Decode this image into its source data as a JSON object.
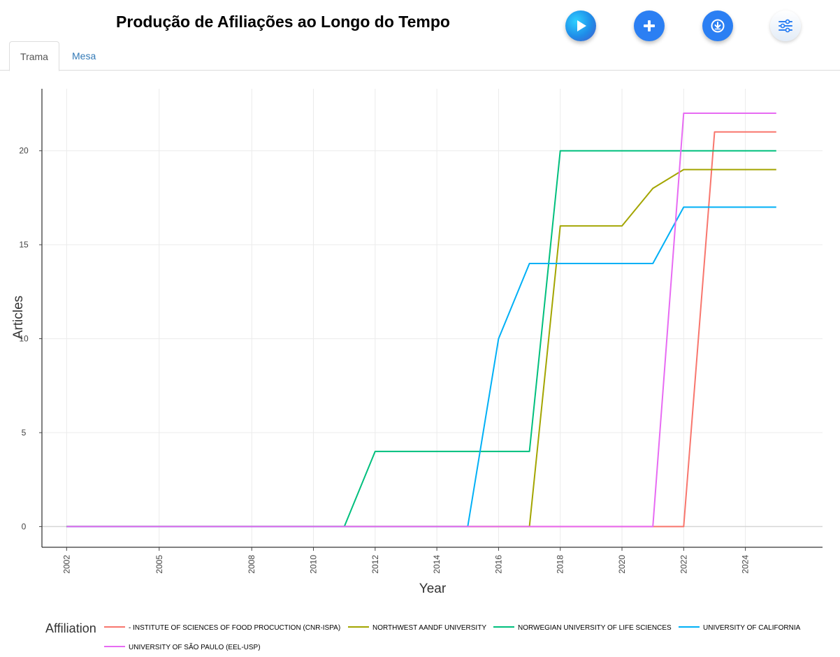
{
  "header": {
    "title": "Produção de Afiliações ao Longo do Tempo"
  },
  "toolbar": {
    "icons": [
      "play-icon",
      "plus-icon",
      "download-icon",
      "sliders-icon"
    ]
  },
  "tabs": [
    {
      "label": "Trama",
      "active": true
    },
    {
      "label": "Mesa",
      "active": false
    }
  ],
  "chart_data": {
    "type": "line",
    "xlabel": "Year",
    "ylabel": "Articles",
    "xlim": [
      2001.2,
      2026.5
    ],
    "ylim": [
      -1.1,
      23.3
    ],
    "x_ticks": [
      2002,
      2005,
      2008,
      2010,
      2012,
      2014,
      2016,
      2018,
      2020,
      2022,
      2024
    ],
    "y_ticks": [
      0,
      5,
      10,
      15,
      20
    ],
    "grid": true,
    "legend_title": "Affiliation",
    "legend_position": "bottom",
    "x": [
      2002,
      2003,
      2004,
      2005,
      2006,
      2007,
      2008,
      2009,
      2010,
      2011,
      2012,
      2013,
      2014,
      2015,
      2016,
      2017,
      2018,
      2019,
      2020,
      2021,
      2022,
      2023,
      2024,
      2025
    ],
    "series": [
      {
        "name": "- INSTITUTE OF SCIENCES OF FOOD PROCUCTION (CNR-ISPA)",
        "color": "#F8766D",
        "values": [
          0,
          0,
          0,
          0,
          0,
          0,
          0,
          0,
          0,
          0,
          0,
          0,
          0,
          0,
          0,
          0,
          0,
          0,
          0,
          0,
          0,
          21,
          21,
          21
        ]
      },
      {
        "name": "NORTHWEST AANDF UNIVERSITY",
        "color": "#A3A500",
        "values": [
          0,
          0,
          0,
          0,
          0,
          0,
          0,
          0,
          0,
          0,
          0,
          0,
          0,
          0,
          0,
          0,
          16,
          16,
          16,
          18,
          19,
          19,
          19,
          19
        ]
      },
      {
        "name": "NORWEGIAN UNIVERSITY OF LIFE SCIENCES",
        "color": "#00BF7D",
        "values": [
          0,
          0,
          0,
          0,
          0,
          0,
          0,
          0,
          0,
          0,
          4,
          4,
          4,
          4,
          4,
          4,
          20,
          20,
          20,
          20,
          20,
          20,
          20,
          20
        ]
      },
      {
        "name": "UNIVERSITY OF CALIFORNIA",
        "color": "#00B0F6",
        "values": [
          0,
          0,
          0,
          0,
          0,
          0,
          0,
          0,
          0,
          0,
          0,
          0,
          0,
          0,
          10,
          14,
          14,
          14,
          14,
          14,
          17,
          17,
          17,
          17
        ]
      },
      {
        "name": "UNIVERSITY OF SÃO PAULO (EEL-USP)",
        "color": "#E76BF3",
        "values": [
          0,
          0,
          0,
          0,
          0,
          0,
          0,
          0,
          0,
          0,
          0,
          0,
          0,
          0,
          0,
          0,
          0,
          0,
          0,
          0,
          22,
          22,
          22,
          22
        ]
      }
    ]
  }
}
